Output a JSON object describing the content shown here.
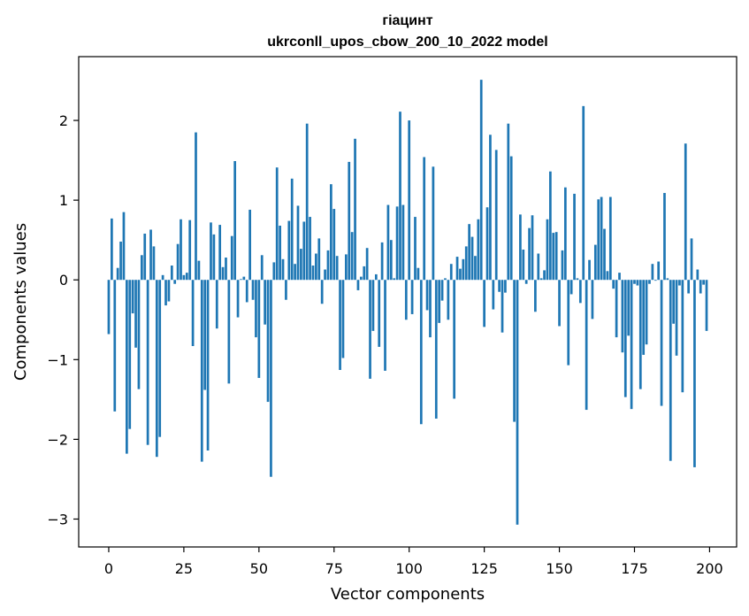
{
  "chart_data": {
    "type": "bar",
    "title_line1": "гіацинт",
    "title_line2": "ukrconll_upos_cbow_200_10_2022 model",
    "xlabel": "Vector components",
    "ylabel": "Components values",
    "xlim": [
      -10,
      209
    ],
    "ylim": [
      -3.35,
      2.8
    ],
    "xticks": [
      0,
      25,
      50,
      75,
      100,
      125,
      150,
      175,
      200
    ],
    "xtick_labels": [
      "0",
      "25",
      "50",
      "75",
      "100",
      "125",
      "150",
      "175",
      "200"
    ],
    "yticks": [
      -3,
      -2,
      -1,
      0,
      1,
      2
    ],
    "ytick_labels": [
      "−3",
      "−2",
      "−1",
      "0",
      "1",
      "2"
    ],
    "bar_color": "#1f77b4",
    "values": [
      -0.68,
      0.77,
      -1.65,
      0.15,
      0.48,
      0.85,
      -2.18,
      -1.87,
      -0.42,
      -0.85,
      -1.37,
      0.31,
      0.58,
      -2.07,
      0.63,
      0.42,
      -2.22,
      -1.97,
      0.06,
      -0.32,
      -0.27,
      0.18,
      -0.05,
      0.45,
      0.76,
      0.06,
      0.09,
      0.75,
      -0.83,
      1.85,
      0.24,
      -2.28,
      -1.38,
      -2.14,
      0.72,
      0.57,
      -0.61,
      0.69,
      0.16,
      0.28,
      -1.3,
      0.55,
      1.49,
      -0.47,
      0.01,
      0.04,
      -0.28,
      0.88,
      -0.25,
      -0.72,
      -1.23,
      0.31,
      -0.56,
      -1.53,
      -2.47,
      0.22,
      1.41,
      0.68,
      0.26,
      -0.25,
      0.74,
      1.27,
      0.2,
      0.93,
      0.39,
      0.73,
      1.96,
      0.79,
      0.18,
      0.33,
      0.52,
      -0.3,
      0.13,
      0.37,
      1.2,
      0.89,
      0.3,
      -1.13,
      -0.98,
      0.32,
      1.48,
      0.6,
      1.77,
      -0.13,
      0.04,
      0.17,
      0.4,
      -1.24,
      -0.64,
      0.07,
      -0.84,
      0.47,
      -1.14,
      0.94,
      0.5,
      0.02,
      0.92,
      2.11,
      0.94,
      -0.5,
      2.0,
      -0.43,
      0.79,
      0.15,
      -1.81,
      1.54,
      -0.38,
      -0.72,
      1.42,
      -1.74,
      -0.54,
      -0.26,
      0.02,
      -0.5,
      0.2,
      -1.49,
      0.29,
      0.14,
      0.26,
      0.42,
      0.7,
      0.54,
      0.3,
      0.76,
      2.51,
      -0.59,
      0.91,
      1.82,
      -0.37,
      1.63,
      -0.15,
      -0.66,
      -0.16,
      1.96,
      1.55,
      -1.78,
      -3.07,
      0.82,
      0.38,
      -0.05,
      0.65,
      0.81,
      -0.4,
      0.33,
      0.02,
      0.12,
      0.76,
      1.36,
      0.59,
      0.6,
      -0.58,
      0.37,
      1.16,
      -1.07,
      -0.18,
      1.08,
      0.02,
      -0.29,
      2.18,
      -1.63,
      0.25,
      -0.49,
      0.44,
      1.01,
      1.04,
      0.64,
      0.11,
      1.04,
      -0.11,
      -0.72,
      0.09,
      -0.91,
      -1.47,
      -0.7,
      -1.62,
      -0.05,
      -0.07,
      -1.37,
      -0.94,
      -0.81,
      -0.05,
      0.2,
      -0.01,
      0.23,
      -1.58,
      1.09,
      0.02,
      -2.27,
      -0.55,
      -0.95,
      -0.07,
      -1.41,
      1.71,
      -0.17,
      0.52,
      -2.35,
      0.13,
      -0.17,
      -0.06,
      -0.64
    ]
  }
}
